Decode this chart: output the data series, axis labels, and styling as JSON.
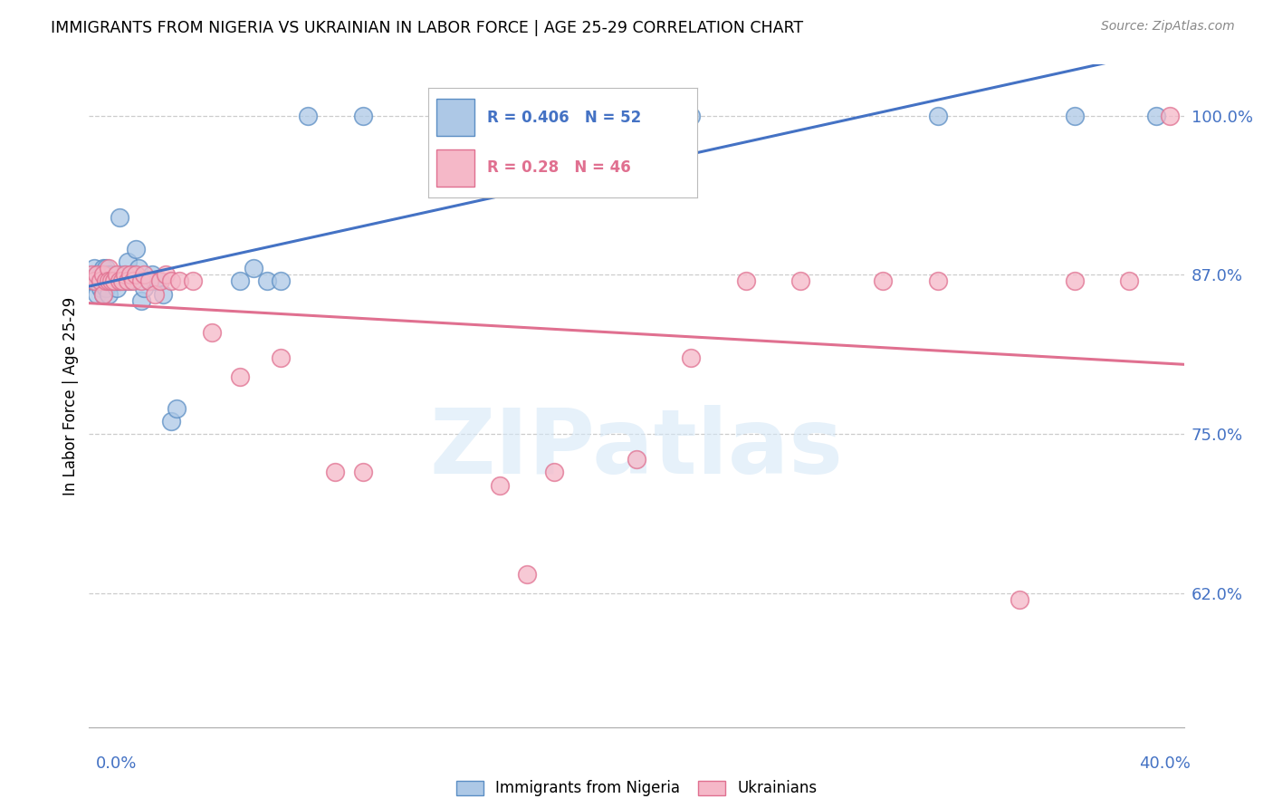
{
  "title": "IMMIGRANTS FROM NIGERIA VS UKRAINIAN IN LABOR FORCE | AGE 25-29 CORRELATION CHART",
  "source": "Source: ZipAtlas.com",
  "ylabel": "In Labor Force | Age 25-29",
  "ytick_values": [
    1.0,
    0.875,
    0.75,
    0.625
  ],
  "xmin": 0.0,
  "xmax": 0.4,
  "ymin": 0.52,
  "ymax": 1.04,
  "nigeria_R": 0.406,
  "nigeria_N": 52,
  "ukraine_R": 0.28,
  "ukraine_N": 46,
  "nigeria_color": "#adc8e6",
  "nigeria_edge_color": "#5b8ec4",
  "nigeria_line_color": "#4472c4",
  "ukraine_color": "#f5b8c8",
  "ukraine_edge_color": "#e07090",
  "ukraine_line_color": "#e07090",
  "watermark_text": "ZIPatlas",
  "nigeria_x": [
    0.001,
    0.002,
    0.002,
    0.003,
    0.003,
    0.004,
    0.004,
    0.005,
    0.005,
    0.005,
    0.006,
    0.006,
    0.006,
    0.007,
    0.007,
    0.008,
    0.008,
    0.009,
    0.01,
    0.01,
    0.011,
    0.011,
    0.012,
    0.013,
    0.013,
    0.014,
    0.015,
    0.016,
    0.017,
    0.018,
    0.019,
    0.02,
    0.022,
    0.023,
    0.024,
    0.025,
    0.027,
    0.03,
    0.032,
    0.055,
    0.06,
    0.065,
    0.07,
    0.08,
    0.1,
    0.15,
    0.16,
    0.2,
    0.22,
    0.31,
    0.36,
    0.39
  ],
  "nigeria_y": [
    0.87,
    0.87,
    0.88,
    0.86,
    0.875,
    0.875,
    0.865,
    0.87,
    0.88,
    0.86,
    0.88,
    0.87,
    0.865,
    0.875,
    0.86,
    0.87,
    0.875,
    0.87,
    0.865,
    0.87,
    0.92,
    0.87,
    0.875,
    0.875,
    0.87,
    0.885,
    0.87,
    0.875,
    0.895,
    0.88,
    0.855,
    0.865,
    0.87,
    0.875,
    0.87,
    0.87,
    0.86,
    0.76,
    0.77,
    0.87,
    0.88,
    0.87,
    0.87,
    1.0,
    1.0,
    1.0,
    1.0,
    1.0,
    1.0,
    1.0,
    1.0,
    1.0
  ],
  "ukraine_x": [
    0.001,
    0.002,
    0.003,
    0.004,
    0.005,
    0.005,
    0.006,
    0.007,
    0.007,
    0.008,
    0.009,
    0.01,
    0.011,
    0.012,
    0.013,
    0.014,
    0.015,
    0.016,
    0.017,
    0.019,
    0.02,
    0.022,
    0.024,
    0.026,
    0.028,
    0.03,
    0.033,
    0.038,
    0.045,
    0.055,
    0.07,
    0.09,
    0.1,
    0.15,
    0.16,
    0.17,
    0.2,
    0.22,
    0.24,
    0.26,
    0.29,
    0.31,
    0.34,
    0.36,
    0.38,
    0.395
  ],
  "ukraine_y": [
    0.875,
    0.87,
    0.875,
    0.87,
    0.875,
    0.86,
    0.87,
    0.88,
    0.87,
    0.87,
    0.87,
    0.875,
    0.87,
    0.87,
    0.875,
    0.87,
    0.875,
    0.87,
    0.875,
    0.87,
    0.875,
    0.87,
    0.86,
    0.87,
    0.875,
    0.87,
    0.87,
    0.87,
    0.83,
    0.795,
    0.81,
    0.72,
    0.72,
    0.71,
    0.64,
    0.72,
    0.73,
    0.81,
    0.87,
    0.87,
    0.87,
    0.87,
    0.62,
    0.87,
    0.87,
    1.0
  ]
}
